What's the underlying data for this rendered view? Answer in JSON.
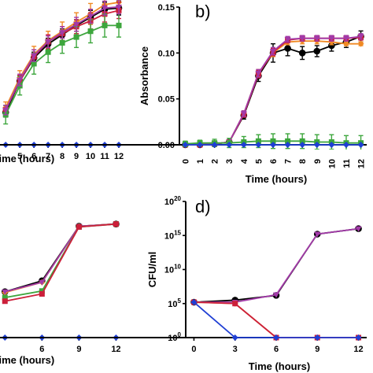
{
  "chart_data": [
    {
      "panel": "a",
      "type": "line",
      "xlabel": "Time (hours)",
      "ylabel": "",
      "x_ticks": [
        "5",
        "6",
        "7",
        "8",
        "9",
        "10",
        "11",
        "12"
      ],
      "x": [
        4,
        5,
        6,
        7,
        8,
        9,
        10,
        11,
        12
      ],
      "xlim": [
        3.6,
        12.5
      ],
      "ylim": [
        0,
        0.125
      ],
      "series": [
        {
          "color": "#000000",
          "marker": "circle",
          "values": [
            0.028,
            0.055,
            0.075,
            0.087,
            0.095,
            0.103,
            0.11,
            0.117,
            0.118
          ],
          "err": [
            0.004,
            0.005,
            0.005,
            0.005,
            0.005,
            0.005,
            0.006,
            0.006,
            0.006
          ]
        },
        {
          "color": "#f08a24",
          "marker": "diamond",
          "values": [
            0.032,
            0.058,
            0.078,
            0.09,
            0.098,
            0.106,
            0.113,
            0.121,
            0.123
          ],
          "err": [
            0.005,
            0.006,
            0.007,
            0.008,
            0.008,
            0.008,
            0.009,
            0.01,
            0.01
          ]
        },
        {
          "color": "#cc1f3a",
          "marker": "square",
          "values": [
            0.03,
            0.055,
            0.076,
            0.089,
            0.096,
            0.102,
            0.107,
            0.113,
            0.116
          ],
          "err": [
            0.004,
            0.005,
            0.006,
            0.006,
            0.006,
            0.006,
            0.007,
            0.007,
            0.007
          ]
        },
        {
          "color": "#3da63d",
          "marker": "square",
          "values": [
            0.026,
            0.051,
            0.07,
            0.08,
            0.088,
            0.093,
            0.098,
            0.103,
            0.103
          ],
          "err": [
            0.008,
            0.008,
            0.009,
            0.009,
            0.009,
            0.009,
            0.01,
            0.01,
            0.01
          ]
        },
        {
          "color": "#a23aa8",
          "marker": "triangle",
          "values": [
            0.03,
            0.056,
            0.077,
            0.089,
            0.097,
            0.104,
            0.111,
            0.118,
            0.119
          ],
          "err": [
            0.004,
            0.005,
            0.005,
            0.005,
            0.005,
            0.006,
            0.006,
            0.006,
            0.006
          ]
        },
        {
          "color": "#1f3fd4",
          "marker": "diamond",
          "values": [
            0,
            0,
            0,
            0,
            0,
            0,
            0,
            0,
            0
          ],
          "err": [
            0,
            0,
            0,
            0,
            0,
            0,
            0,
            0,
            0
          ]
        }
      ]
    },
    {
      "panel": "b",
      "type": "line",
      "letter": "b)",
      "xlabel": "Time (hours)",
      "ylabel": "Absorbance",
      "y_ticks": [
        "0.00",
        "0.05",
        "0.10",
        "0.15"
      ],
      "x_ticks": [
        "0",
        "1",
        "2",
        "3",
        "4",
        "5",
        "6",
        "7",
        "8",
        "9",
        "10",
        "11",
        "12"
      ],
      "x": [
        0,
        1,
        2,
        3,
        4,
        5,
        6,
        7,
        8,
        9,
        10,
        11,
        12
      ],
      "xlim": [
        -0.4,
        12.4
      ],
      "ylim": [
        0,
        0.15
      ],
      "series": [
        {
          "color": "#000000",
          "marker": "circle",
          "values": [
            0.0,
            0.0,
            0.001,
            0.003,
            0.032,
            0.075,
            0.1,
            0.105,
            0.1,
            0.102,
            0.108,
            0.112,
            0.118
          ],
          "err": [
            0,
            0,
            0,
            0.001,
            0.004,
            0.006,
            0.01,
            0.008,
            0.007,
            0.006,
            0.006,
            0.006,
            0.006
          ]
        },
        {
          "color": "#f08a24",
          "marker": "diamond",
          "values": [
            0.0,
            0.0,
            0.001,
            0.003,
            0.034,
            0.078,
            0.1,
            0.112,
            0.113,
            0.113,
            0.112,
            0.11,
            0.11
          ],
          "err": [
            0,
            0,
            0,
            0.001,
            0.003,
            0.004,
            0.004,
            0.003,
            0.003,
            0.003,
            0.003,
            0.002,
            0.002
          ]
        },
        {
          "color": "#cc1f3a",
          "marker": "square",
          "values": [
            0.0,
            0.0,
            0.001,
            0.003,
            0.033,
            0.077,
            0.101,
            0.114,
            0.116,
            0.116,
            0.116,
            0.116,
            0.117
          ],
          "err": [
            0,
            0,
            0,
            0.001,
            0.003,
            0.004,
            0.004,
            0.003,
            0.003,
            0.003,
            0.003,
            0.003,
            0.003
          ]
        },
        {
          "color": "#a23aa8",
          "marker": "triangle",
          "values": [
            0.0,
            0.0,
            0.001,
            0.003,
            0.034,
            0.078,
            0.102,
            0.115,
            0.116,
            0.116,
            0.116,
            0.116,
            0.118
          ],
          "err": [
            0,
            0,
            0,
            0.001,
            0.003,
            0.004,
            0.004,
            0.003,
            0.003,
            0.003,
            0.003,
            0.003,
            0.003
          ]
        },
        {
          "color": "#3da63d",
          "marker": "square",
          "values": [
            0.001,
            0.002,
            0.002,
            0.002,
            0.003,
            0.004,
            0.004,
            0.004,
            0.004,
            0.003,
            0.003,
            0.002,
            0.002
          ],
          "err": [
            0.003,
            0.003,
            0.004,
            0.005,
            0.006,
            0.007,
            0.008,
            0.008,
            0.008,
            0.008,
            0.008,
            0.008,
            0.008
          ]
        },
        {
          "color": "#1f3fd4",
          "marker": "diamond",
          "values": [
            0,
            0,
            0,
            0,
            0,
            0,
            0,
            0,
            0,
            0,
            0,
            0,
            0
          ],
          "err": [
            0,
            0,
            0,
            0,
            0,
            0,
            0,
            0,
            0,
            0,
            0,
            0,
            0
          ]
        }
      ]
    },
    {
      "panel": "c",
      "type": "line",
      "xlabel": "Time (hours)",
      "ylabel": "",
      "x_ticks": [
        "6",
        "9",
        "12"
      ],
      "x": [
        3,
        6,
        9,
        12
      ],
      "xlim": [
        2.6,
        12.8
      ],
      "ylim_log10": [
        0,
        20
      ],
      "log_y": true,
      "series": [
        {
          "color": "#000000",
          "marker": "circle",
          "log10_values": [
            6.3,
            7.8,
            15.3,
            15.6
          ]
        },
        {
          "color": "#f08a24",
          "marker": "diamond",
          "log10_values": [
            6.2,
            7.6,
            15.3,
            15.6
          ]
        },
        {
          "color": "#a23aa8",
          "marker": "triangle",
          "log10_values": [
            6.3,
            7.6,
            15.3,
            15.6
          ]
        },
        {
          "color": "#3da63d",
          "marker": "square",
          "log10_values": [
            5.5,
            6.4,
            15.2,
            15.6
          ]
        },
        {
          "color": "#cc1f3a",
          "marker": "square",
          "log10_values": [
            5.0,
            6.0,
            15.2,
            15.6
          ]
        },
        {
          "color": "#1f3fd4",
          "marker": "diamond",
          "log10_values": [
            0,
            0,
            0,
            0
          ]
        }
      ]
    },
    {
      "panel": "d",
      "type": "line",
      "letter": "d)",
      "xlabel": "Time (hours)",
      "ylabel": "CFU/ml",
      "y_ticks": [
        {
          "base": "10",
          "exp": "0"
        },
        {
          "base": "10",
          "exp": "5"
        },
        {
          "base": "10",
          "exp": "10"
        },
        {
          "base": "10",
          "exp": "15"
        },
        {
          "base": "10",
          "exp": "20"
        }
      ],
      "x_ticks": [
        "0",
        "3",
        "6",
        "9",
        "12"
      ],
      "x": [
        0,
        3,
        6,
        9,
        12
      ],
      "xlim": [
        -0.6,
        12.6
      ],
      "log_y": true,
      "ylim_log10": [
        0,
        20
      ],
      "series": [
        {
          "color": "#000000",
          "marker": "circle",
          "log10_values": [
            5.2,
            5.5,
            6.2,
            15.2,
            16.0
          ]
        },
        {
          "color": "#a23aa8",
          "marker": "triangle",
          "log10_values": [
            5.2,
            5.2,
            6.3,
            15.2,
            16.0
          ]
        },
        {
          "color": "#f08a24",
          "marker": "diamond",
          "log10_values": [
            5.2,
            5.0,
            0,
            0,
            0
          ]
        },
        {
          "color": "#cc1f3a",
          "marker": "square",
          "log10_values": [
            5.2,
            5.0,
            0,
            0,
            0
          ]
        },
        {
          "color": "#1f3fd4",
          "marker": "diamond",
          "log10_values": [
            5.2,
            0,
            0,
            0,
            0
          ]
        }
      ]
    }
  ]
}
